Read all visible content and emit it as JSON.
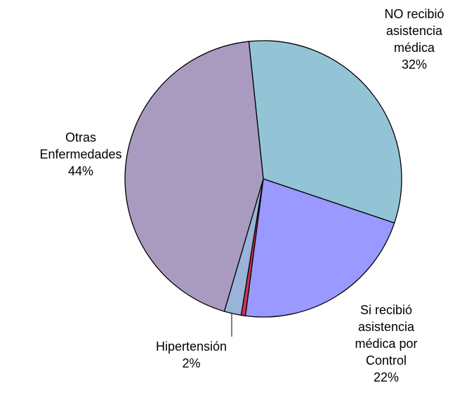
{
  "chart_data": {
    "type": "pie",
    "categories": [
      "NO recibió asistencia médica",
      "Si recibió asistencia médica por Control",
      null,
      "Hipertensión",
      "Otras Enfermedades"
    ],
    "values": [
      32,
      22,
      0.5,
      2,
      44
    ],
    "value_labels": [
      "32%",
      "22%",
      null,
      "2%",
      "44%"
    ],
    "colors": [
      "#93c4d6",
      "#9999ff",
      "#cc3355",
      "#99b3d9",
      "#a99bc0"
    ]
  }
}
